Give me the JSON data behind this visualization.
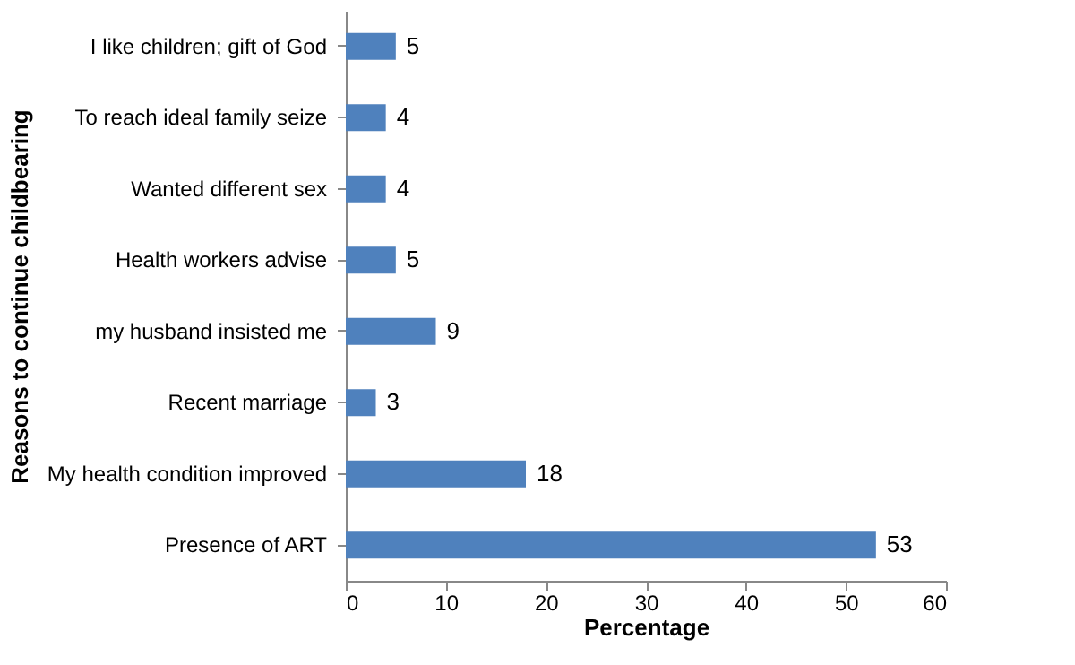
{
  "chart_data": {
    "type": "bar",
    "orientation": "horizontal",
    "xlabel": "Percentage",
    "ylabel": "Reasons to continue childbearing",
    "categories": [
      "I like children; gift of God",
      "To reach ideal family seize",
      "Wanted different  sex",
      "Health workers advise",
      "my husband insisted me",
      "Recent marriage",
      "My health condition improved",
      "Presence of ART"
    ],
    "values": [
      5,
      4,
      4,
      5,
      9,
      3,
      18,
      53
    ],
    "color": "#4f81bd",
    "xlim": [
      0,
      60
    ],
    "xticks": [
      0,
      10,
      20,
      30,
      40,
      50,
      60
    ],
    "grid": false,
    "data_labels": true
  }
}
